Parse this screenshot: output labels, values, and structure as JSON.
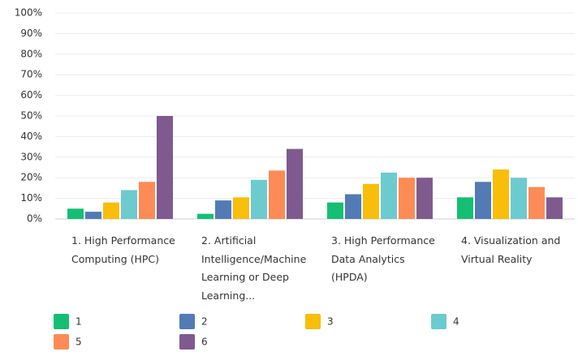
{
  "chart_data": {
    "type": "bar",
    "categories": [
      "1. High Performance Computing (HPC)",
      "2. Artificial Intelligence/Machine Learning or Deep Learning...",
      "3. High Performance Data Analytics (HPDA)",
      "4. Visualization and Virtual Reality"
    ],
    "series": [
      {
        "name": "1",
        "color": "#14bf74",
        "values": [
          5,
          2.5,
          8,
          10.5
        ]
      },
      {
        "name": "2",
        "color": "#527bb5",
        "values": [
          3.5,
          9,
          12,
          18
        ]
      },
      {
        "name": "3",
        "color": "#f8be0a",
        "values": [
          8,
          10.5,
          17,
          24
        ]
      },
      {
        "name": "4",
        "color": "#6ccbcf",
        "values": [
          14,
          19,
          22.5,
          20
        ]
      },
      {
        "name": "5",
        "color": "#fd8b55",
        "values": [
          18,
          23.5,
          20,
          15.5
        ]
      },
      {
        "name": "6",
        "color": "#7e5a8f",
        "values": [
          50,
          34,
          20,
          10.5
        ]
      }
    ],
    "ylim": [
      0,
      100
    ],
    "yticks": [
      {
        "value": 0,
        "label": "0%"
      },
      {
        "value": 10,
        "label": "10%"
      },
      {
        "value": 20,
        "label": "20%"
      },
      {
        "value": 30,
        "label": "30%"
      },
      {
        "value": 40,
        "label": "40%"
      },
      {
        "value": 50,
        "label": "50%"
      },
      {
        "value": 60,
        "label": "60%"
      },
      {
        "value": 70,
        "label": "70%"
      },
      {
        "value": 80,
        "label": "80%"
      },
      {
        "value": 90,
        "label": "90%"
      },
      {
        "value": 100,
        "label": "100%"
      }
    ],
    "grid": true
  }
}
